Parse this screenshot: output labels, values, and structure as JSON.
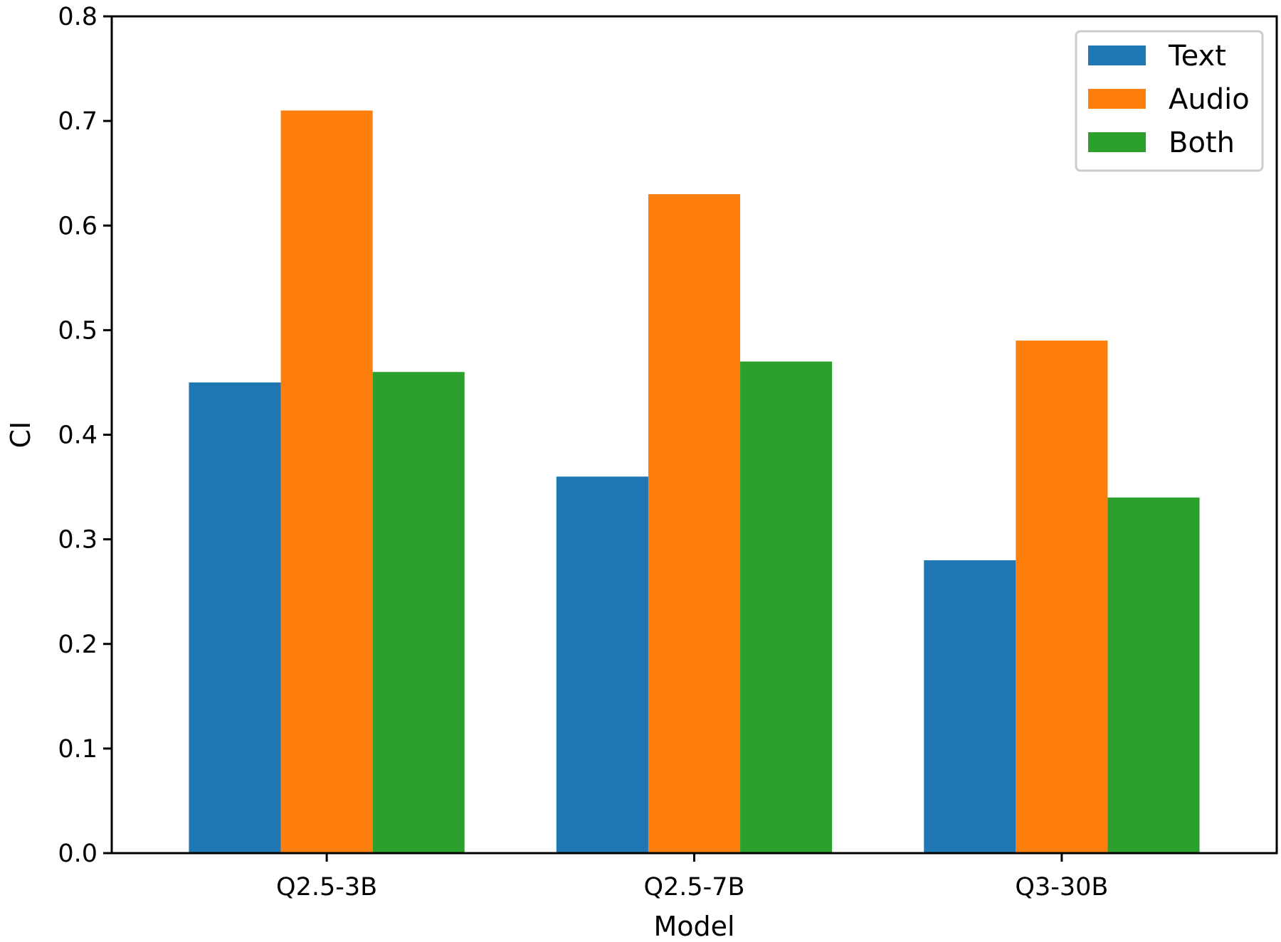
{
  "chart_data": {
    "type": "bar",
    "categories": [
      "Q2.5-3B",
      "Q2.5-7B",
      "Q3-30B"
    ],
    "series": [
      {
        "name": "Text",
        "values": [
          0.45,
          0.36,
          0.28
        ],
        "color": "#1f77b4"
      },
      {
        "name": "Audio",
        "values": [
          0.71,
          0.63,
          0.49
        ],
        "color": "#ff7f0e"
      },
      {
        "name": "Both",
        "values": [
          0.46,
          0.47,
          0.34
        ],
        "color": "#2ca02c"
      }
    ],
    "xlabel": "Model",
    "ylabel": "CI",
    "ylim": [
      0,
      0.8
    ],
    "yticks": [
      "0.0",
      "0.1",
      "0.2",
      "0.3",
      "0.4",
      "0.5",
      "0.6",
      "0.7",
      "0.8"
    ],
    "grid": false,
    "legend_position": "top-right"
  }
}
